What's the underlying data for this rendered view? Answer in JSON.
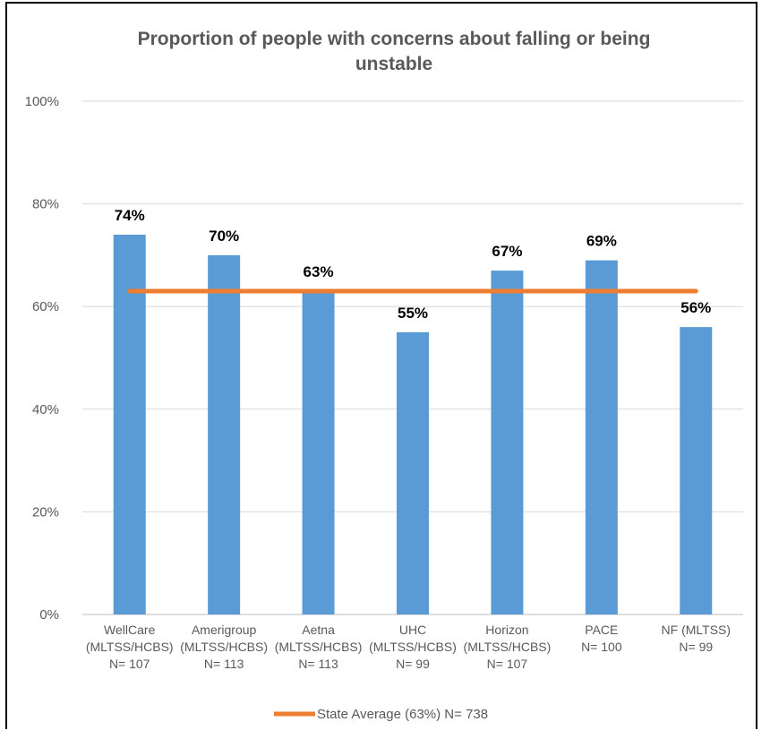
{
  "chart_data": {
    "type": "bar",
    "title_lines": [
      "Proportion of people with concerns about falling or being",
      "unstable"
    ],
    "categories": [
      [
        "WellCare",
        "(MLTSS/HCBS)",
        "N= 107"
      ],
      [
        "Amerigroup",
        "(MLTSS/HCBS)",
        "N= 113"
      ],
      [
        "Aetna",
        "(MLTSS/HCBS)",
        "N= 113"
      ],
      [
        "UHC",
        "(MLTSS/HCBS)",
        "N= 99"
      ],
      [
        "Horizon",
        "(MLTSS/HCBS)",
        "N= 107"
      ],
      [
        "PACE",
        "N= 100"
      ],
      [
        "NF (MLTSS)",
        "N= 99"
      ]
    ],
    "values": [
      74,
      70,
      63,
      55,
      67,
      69,
      56
    ],
    "data_labels": [
      "74%",
      "70%",
      "63%",
      "55%",
      "67%",
      "69%",
      "56%"
    ],
    "ylim": [
      0,
      100
    ],
    "y_ticks": [
      0,
      20,
      40,
      60,
      80,
      100
    ],
    "y_tick_labels": [
      "0%",
      "20%",
      "40%",
      "60%",
      "80%",
      "100%"
    ],
    "reference_line": {
      "label": "State Average (63%) N= 738",
      "value": 63
    },
    "bar_color": "#5B9BD5",
    "line_color": "#ED7D31",
    "grid": true,
    "legend_position": "bottom"
  }
}
